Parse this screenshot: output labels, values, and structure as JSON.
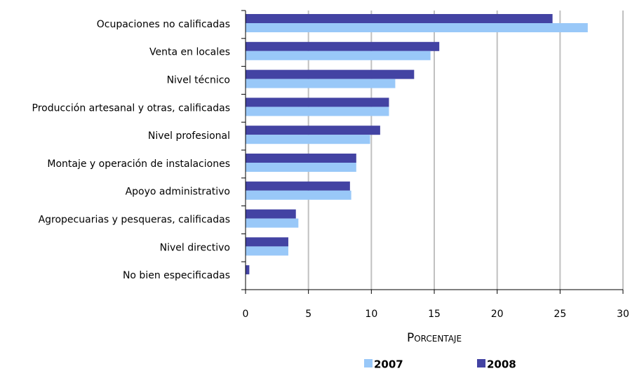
{
  "chart_data": {
    "type": "bar",
    "orientation": "horizontal",
    "categories": [
      "Ocupaciones no calificadas",
      "Venta en locales",
      "Nivel técnico",
      "Producción artesanal y otras, calificadas",
      "Nivel profesional",
      "Montaje y operación de instalaciones",
      "Apoyo administrativo",
      "Agropecuarias y pesqueras, calificadas",
      "Nivel directivo",
      "No bien especificadas"
    ],
    "series": [
      {
        "name": "2007",
        "color": "#99c8f8",
        "values": [
          27.2,
          14.7,
          11.9,
          11.4,
          9.9,
          8.8,
          8.4,
          4.2,
          3.4,
          0
        ]
      },
      {
        "name": "2008",
        "color": "#4343a3",
        "values": [
          24.4,
          15.4,
          13.4,
          11.4,
          10.7,
          8.8,
          8.3,
          4.0,
          3.4,
          0.3
        ]
      }
    ],
    "x_label": "Porcentaje",
    "xlim": [
      0,
      30
    ],
    "xticks": [
      0,
      5,
      10,
      15,
      20,
      25,
      30
    ],
    "grid": true,
    "legend": "bottom"
  }
}
